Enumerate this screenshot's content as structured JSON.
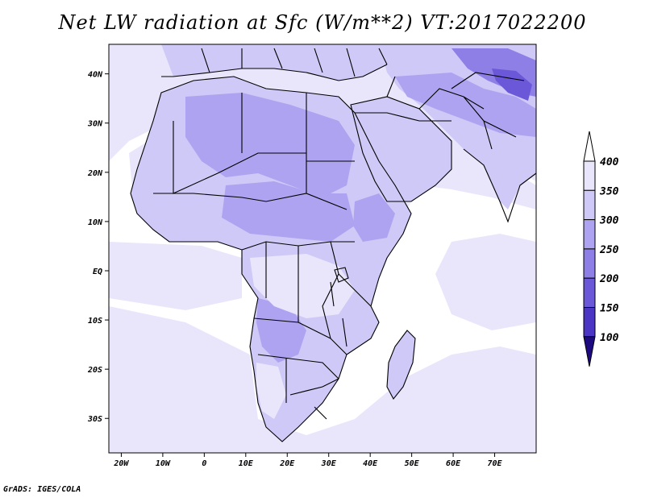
{
  "title": "Net LW radiation at Sfc (W/m**2) VT:2017022200",
  "credit": "GrADS: IGES/COLA",
  "map": {
    "lon_range": [
      -23,
      80
    ],
    "lat_range": [
      -37,
      46
    ],
    "lon_ticks": [
      {
        "value": -20,
        "label": "20W"
      },
      {
        "value": -10,
        "label": "10W"
      },
      {
        "value": 0,
        "label": "0"
      },
      {
        "value": 10,
        "label": "10E"
      },
      {
        "value": 20,
        "label": "20E"
      },
      {
        "value": 30,
        "label": "30E"
      },
      {
        "value": 40,
        "label": "40E"
      },
      {
        "value": 50,
        "label": "50E"
      },
      {
        "value": 60,
        "label": "60E"
      },
      {
        "value": 70,
        "label": "70E"
      }
    ],
    "lat_ticks": [
      {
        "value": 40,
        "label": "40N"
      },
      {
        "value": 30,
        "label": "30N"
      },
      {
        "value": 20,
        "label": "20N"
      },
      {
        "value": 10,
        "label": "10N"
      },
      {
        "value": 0,
        "label": "EQ"
      },
      {
        "value": -10,
        "label": "10S"
      },
      {
        "value": -20,
        "label": "20S"
      },
      {
        "value": -30,
        "label": "30S"
      }
    ]
  },
  "colorbar": {
    "levels": [
      {
        "label": "400",
        "color": "#e9e6fc"
      },
      {
        "label": "350",
        "color": "#cfc9f7"
      },
      {
        "label": "300",
        "color": "#aea3f0"
      },
      {
        "label": "250",
        "color": "#8d7fe6"
      },
      {
        "label": "200",
        "color": "#6a58d9"
      },
      {
        "label": "150",
        "color": "#4a35c4"
      },
      {
        "label": "100",
        "color": "#2c14a0"
      }
    ],
    "top_color": "#ffffff",
    "bottom_color": "#1e0a80"
  },
  "colors": {
    "ocean_high": "#ffffff",
    "ocean_mid": "#e9e6fc",
    "land_base": "#cfc9f7",
    "land_mid": "#aea3f0",
    "land_dark": "#8d7fe6",
    "land_darker": "#6a58d9",
    "boundary": "#000000"
  }
}
